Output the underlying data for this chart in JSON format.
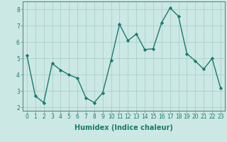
{
  "x": [
    0,
    1,
    2,
    3,
    4,
    5,
    6,
    7,
    8,
    9,
    10,
    11,
    12,
    13,
    14,
    15,
    16,
    17,
    18,
    19,
    20,
    21,
    22,
    23
  ],
  "y": [
    5.2,
    2.7,
    2.3,
    4.7,
    4.3,
    4.0,
    3.8,
    2.6,
    2.3,
    2.9,
    4.9,
    7.1,
    6.1,
    6.5,
    5.55,
    5.6,
    7.2,
    8.1,
    7.6,
    5.3,
    4.85,
    4.35,
    5.0,
    3.2
  ],
  "line_color": "#1a7a6e",
  "marker": "D",
  "marker_size": 2.2,
  "linewidth": 1.0,
  "xlim": [
    -0.5,
    23.5
  ],
  "ylim": [
    1.8,
    8.5
  ],
  "yticks": [
    2,
    3,
    4,
    5,
    6,
    7,
    8
  ],
  "xticks": [
    0,
    1,
    2,
    3,
    4,
    5,
    6,
    7,
    8,
    9,
    10,
    11,
    12,
    13,
    14,
    15,
    16,
    17,
    18,
    19,
    20,
    21,
    22,
    23
  ],
  "xlabel": "Humidex (Indice chaleur)",
  "xlabel_fontsize": 7,
  "bg_color": "#cce8e4",
  "grid_color": "#aacfcb",
  "tick_fontsize": 5.5,
  "title": ""
}
